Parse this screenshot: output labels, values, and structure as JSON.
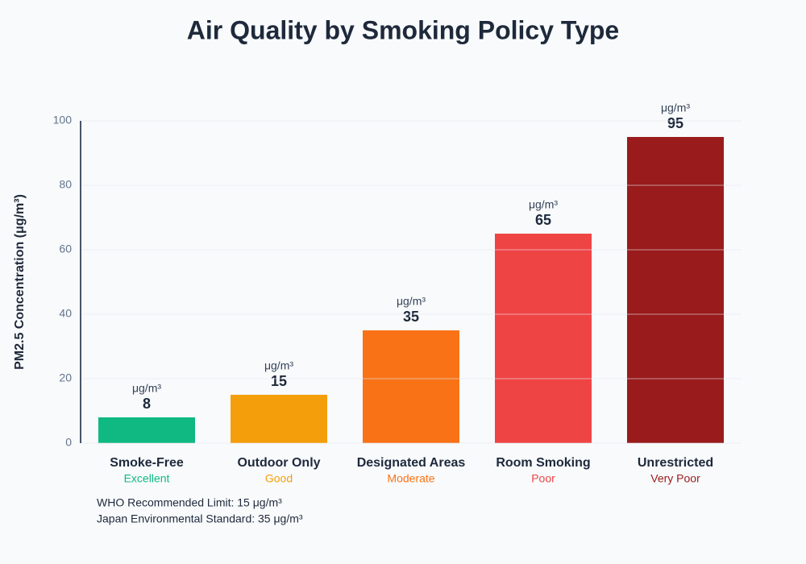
{
  "chart_data": {
    "type": "bar",
    "title": "Air Quality by Smoking Policy Type",
    "y_label": "PM2.5 Concentration (μg/m³)",
    "categories": [
      "Smoke-Free",
      "Outdoor Only",
      "Designated Areas",
      "Room Smoking",
      "Unrestricted"
    ],
    "ratings": [
      "Excellent",
      "Good",
      "Moderate",
      "Poor",
      "Very Poor"
    ],
    "values": [
      8,
      15,
      35,
      65,
      95
    ],
    "colors": [
      "#10b981",
      "#f59e0b",
      "#f97316",
      "#ef4444",
      "#991b1b"
    ],
    "unit": "μg/m³",
    "ylim": [
      0,
      100
    ],
    "yticks": [
      0,
      20,
      40,
      60,
      80,
      100
    ],
    "grid": true,
    "notes": [
      "WHO Recommended Limit: 15 μg/m³",
      "Japan Environmental Standard: 35 μg/m³"
    ]
  }
}
